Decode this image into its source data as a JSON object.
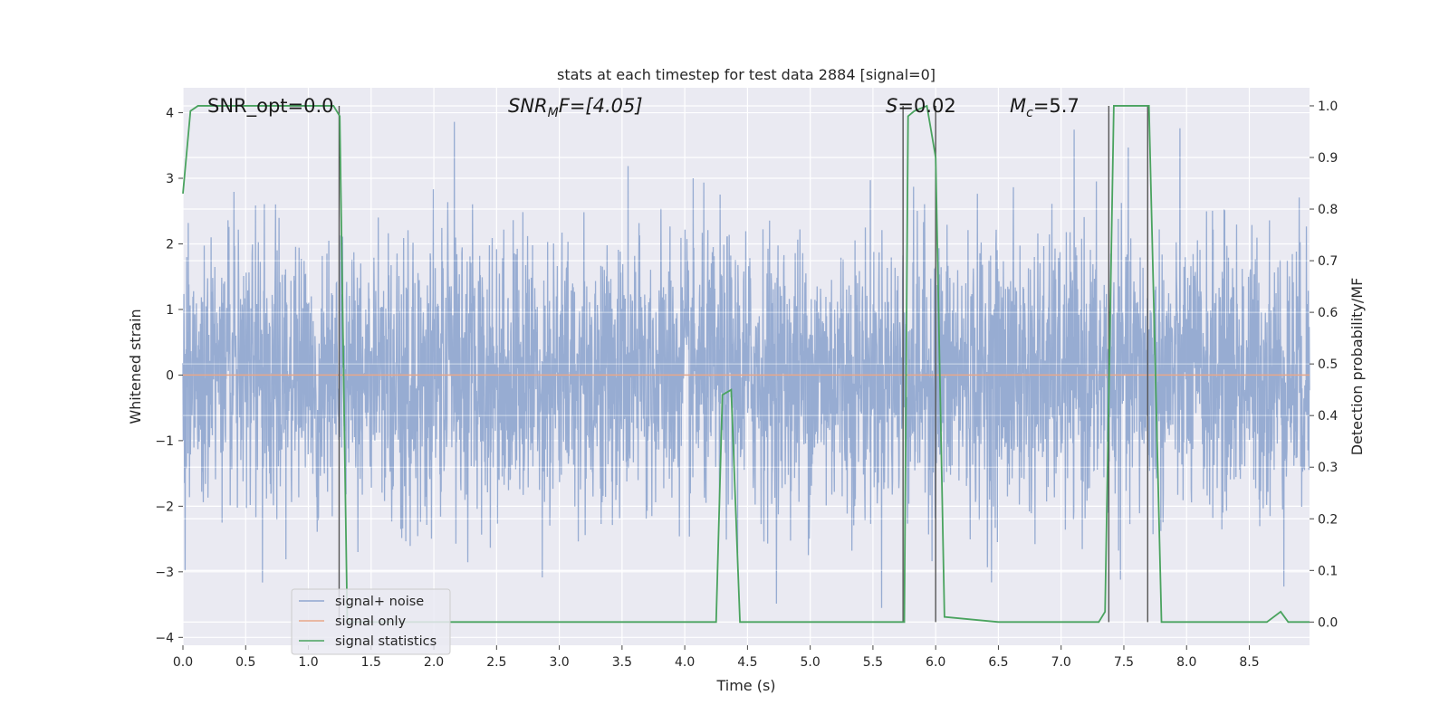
{
  "chart_data": {
    "type": "line",
    "title": "stats at each timestep for test data 2884 [signal=0]",
    "xlabel": "Time (s)",
    "ylabel": "Whitened strain",
    "y2label": "Detection probability/MF",
    "xlim": [
      0.0,
      8.98
    ],
    "ylim": [
      -4.12,
      4.38
    ],
    "y2lim": [
      -0.045,
      1.035
    ],
    "x_ticks": [
      "0.0",
      "0.5",
      "1.0",
      "1.5",
      "2.0",
      "2.5",
      "3.0",
      "3.5",
      "4.0",
      "4.5",
      "5.0",
      "5.5",
      "6.0",
      "6.5",
      "7.0",
      "7.5",
      "8.0",
      "8.5"
    ],
    "y_ticks": [
      "−4",
      "−3",
      "−2",
      "−1",
      "0",
      "1",
      "2",
      "3",
      "4"
    ],
    "y2_ticks": [
      "0.0",
      "0.1",
      "0.2",
      "0.3",
      "0.4",
      "0.5",
      "0.6",
      "0.7",
      "0.8",
      "0.9",
      "1.0"
    ],
    "grid": true,
    "legend_position": "lower-left",
    "annotations": {
      "snr_opt": "SNR_opt=0.0",
      "snr_mf_prefix": "SNR",
      "snr_mf_sub": "M",
      "snr_mf_suffix": "F=[4.05]",
      "s_prefix": "S",
      "s_suffix": "=0.02",
      "mc_prefix": "M",
      "mc_sub": "c",
      "mc_suffix": "=5.7"
    },
    "series": [
      {
        "name": "signal+ noise",
        "color": "#8fa6cf",
        "kind": "noise",
        "x_range": [
          0.0,
          8.98
        ],
        "y_range": [
          -3.75,
          3.95
        ]
      },
      {
        "name": "signal only",
        "color": "#e8a78a",
        "kind": "constant",
        "x": [
          0.0,
          8.98
        ],
        "y": [
          0.0,
          0.0
        ]
      },
      {
        "name": "signal statistics",
        "color": "#4aa35f",
        "axis": "right",
        "x": [
          0.0,
          0.06,
          0.12,
          0.5,
          1.0,
          1.2,
          1.25,
          1.31,
          1.5,
          2.0,
          3.0,
          4.0,
          4.25,
          4.3,
          4.37,
          4.44,
          5.0,
          5.5,
          5.7,
          5.75,
          5.78,
          5.83,
          5.93,
          6.0,
          6.07,
          6.5,
          7.0,
          7.3,
          7.35,
          7.42,
          7.7,
          7.8,
          7.85,
          8.5,
          8.64,
          8.75,
          8.81,
          8.98
        ],
        "y": [
          0.83,
          0.99,
          1.0,
          1.0,
          1.0,
          1.0,
          0.98,
          0.0,
          0.0,
          0.0,
          0.0,
          0.0,
          0.0,
          0.44,
          0.45,
          0.0,
          0.0,
          0.0,
          0.0,
          0.0,
          0.98,
          0.99,
          1.0,
          0.9,
          0.01,
          0.0,
          0.0,
          0.0,
          0.02,
          1.0,
          1.0,
          0.0,
          0.0,
          0.0,
          0.0,
          0.02,
          0.0,
          0.0
        ]
      }
    ],
    "vlines": [
      {
        "x": 1.245,
        "y2_top": 1.0
      },
      {
        "x": 5.74,
        "y2_top": 1.0
      },
      {
        "x": 6.0,
        "y2_top": 1.0
      },
      {
        "x": 7.38,
        "y2_top": 1.0
      },
      {
        "x": 7.69,
        "y2_top": 1.0
      }
    ],
    "vline_color": "#555555"
  }
}
